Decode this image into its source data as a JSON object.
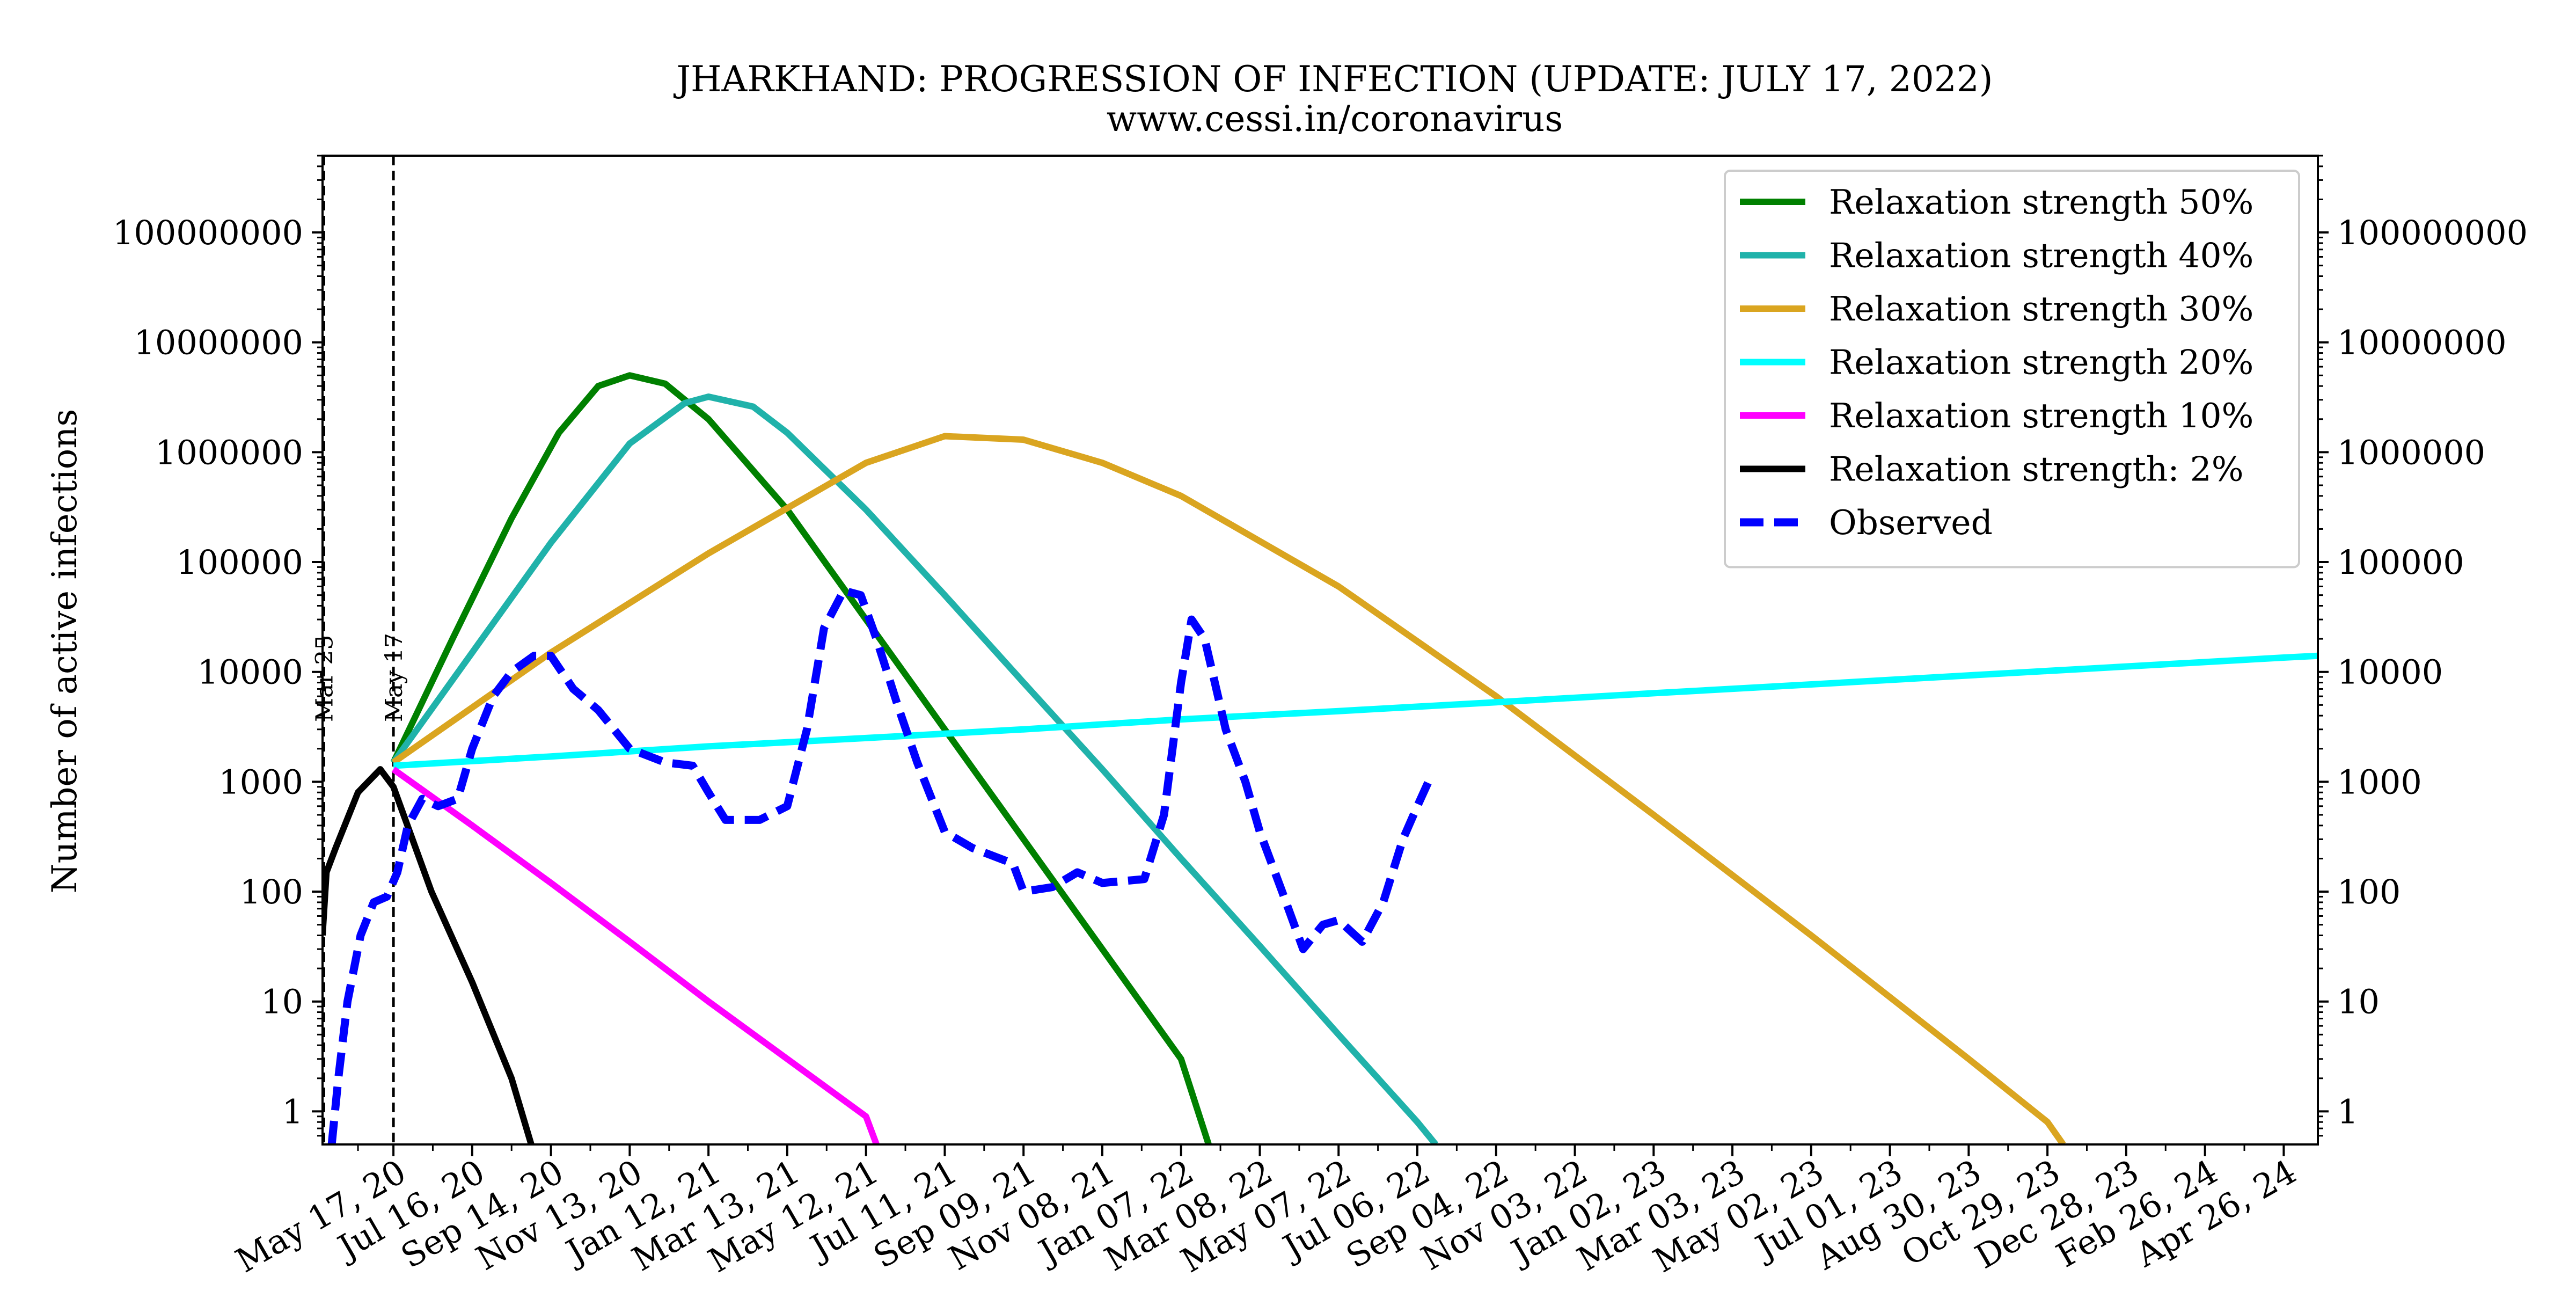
{
  "chart_data": {
    "type": "line",
    "title": "JHARKHAND: PROGRESSION OF INFECTION (UPDATE: JULY 17, 2022)",
    "subtitle": "www.cessi.in/coronavirus",
    "xlabel": "",
    "ylabel": "Number of active infections",
    "y_scale": "log",
    "ylim": [
      0.5,
      500000000
    ],
    "xlim": [
      "2020-03-24",
      "2024-05-22"
    ],
    "y_ticks": [
      {
        "value": 1,
        "label": "1"
      },
      {
        "value": 10,
        "label": "10"
      },
      {
        "value": 100,
        "label": "100"
      },
      {
        "value": 1000,
        "label": "1000"
      },
      {
        "value": 10000,
        "label": "10000"
      },
      {
        "value": 100000,
        "label": "100000"
      },
      {
        "value": 1000000,
        "label": "1000000"
      },
      {
        "value": 10000000,
        "label": "10000000"
      },
      {
        "value": 100000000,
        "label": "100000000"
      }
    ],
    "x_ticks": [
      {
        "date": "2020-05-17",
        "label": "May 17, 20"
      },
      {
        "date": "2020-07-16",
        "label": "Jul 16, 20"
      },
      {
        "date": "2020-09-14",
        "label": "Sep 14, 20"
      },
      {
        "date": "2020-11-13",
        "label": "Nov 13, 20"
      },
      {
        "date": "2021-01-12",
        "label": "Jan 12, 21"
      },
      {
        "date": "2021-03-13",
        "label": "Mar 13, 21"
      },
      {
        "date": "2021-05-12",
        "label": "May 12, 21"
      },
      {
        "date": "2021-07-11",
        "label": "Jul 11, 21"
      },
      {
        "date": "2021-09-09",
        "label": "Sep 09, 21"
      },
      {
        "date": "2021-11-08",
        "label": "Nov 08, 21"
      },
      {
        "date": "2022-01-07",
        "label": "Jan 07, 22"
      },
      {
        "date": "2022-03-08",
        "label": "Mar 08, 22"
      },
      {
        "date": "2022-05-07",
        "label": "May 07, 22"
      },
      {
        "date": "2022-07-06",
        "label": "Jul 06, 22"
      },
      {
        "date": "2022-09-04",
        "label": "Sep 04, 22"
      },
      {
        "date": "2022-11-03",
        "label": "Nov 03, 22"
      },
      {
        "date": "2023-01-02",
        "label": "Jan 02, 23"
      },
      {
        "date": "2023-03-03",
        "label": "Mar 03, 23"
      },
      {
        "date": "2023-05-02",
        "label": "May 02, 23"
      },
      {
        "date": "2023-07-01",
        "label": "Jul 01, 23"
      },
      {
        "date": "2023-08-30",
        "label": "Aug 30, 23"
      },
      {
        "date": "2023-10-29",
        "label": "Oct 29, 23"
      },
      {
        "date": "2023-12-28",
        "label": "Dec 28, 23"
      },
      {
        "date": "2024-02-26",
        "label": "Feb 26, 24"
      },
      {
        "date": "2024-04-26",
        "label": "Apr 26, 24"
      }
    ],
    "vertical_lines": [
      {
        "date": "2020-03-25",
        "label": "Mar 25",
        "color": "#000000"
      },
      {
        "date": "2020-05-17",
        "label": "May 17",
        "color": "#000000"
      }
    ],
    "legend_position": "upper right",
    "grid": false,
    "series": [
      {
        "name": "Relaxation strength 50%",
        "color": "#008000",
        "style": "solid",
        "points": [
          {
            "x": "2020-05-17",
            "y": 1500
          },
          {
            "x": "2020-07-01",
            "y": 20000
          },
          {
            "x": "2020-08-15",
            "y": 250000
          },
          {
            "x": "2020-09-20",
            "y": 1500000
          },
          {
            "x": "2020-10-20",
            "y": 4000000
          },
          {
            "x": "2020-11-13",
            "y": 5000000
          },
          {
            "x": "2020-12-10",
            "y": 4200000
          },
          {
            "x": "2021-01-12",
            "y": 2000000
          },
          {
            "x": "2021-03-13",
            "y": 300000
          },
          {
            "x": "2021-05-12",
            "y": 30000
          },
          {
            "x": "2021-07-11",
            "y": 3000
          },
          {
            "x": "2021-09-09",
            "y": 300
          },
          {
            "x": "2021-11-08",
            "y": 30
          },
          {
            "x": "2022-01-07",
            "y": 3
          },
          {
            "x": "2022-01-28",
            "y": 0.5
          }
        ]
      },
      {
        "name": "Relaxation strength 40%",
        "color": "#20b2aa",
        "style": "solid",
        "points": [
          {
            "x": "2020-05-17",
            "y": 1500
          },
          {
            "x": "2020-07-16",
            "y": 15000
          },
          {
            "x": "2020-09-14",
            "y": 150000
          },
          {
            "x": "2020-11-13",
            "y": 1200000
          },
          {
            "x": "2020-12-25",
            "y": 2800000
          },
          {
            "x": "2021-01-12",
            "y": 3200000
          },
          {
            "x": "2021-02-15",
            "y": 2600000
          },
          {
            "x": "2021-03-13",
            "y": 1500000
          },
          {
            "x": "2021-05-12",
            "y": 300000
          },
          {
            "x": "2021-07-11",
            "y": 50000
          },
          {
            "x": "2021-09-09",
            "y": 8000
          },
          {
            "x": "2021-11-08",
            "y": 1300
          },
          {
            "x": "2022-01-07",
            "y": 200
          },
          {
            "x": "2022-03-08",
            "y": 32
          },
          {
            "x": "2022-05-07",
            "y": 5
          },
          {
            "x": "2022-07-06",
            "y": 0.8
          },
          {
            "x": "2022-07-20",
            "y": 0.5
          }
        ]
      },
      {
        "name": "Relaxation strength 30%",
        "color": "#daa520",
        "style": "solid",
        "points": [
          {
            "x": "2020-05-17",
            "y": 1500
          },
          {
            "x": "2020-09-14",
            "y": 15000
          },
          {
            "x": "2021-01-12",
            "y": 120000
          },
          {
            "x": "2021-05-12",
            "y": 800000
          },
          {
            "x": "2021-07-11",
            "y": 1400000
          },
          {
            "x": "2021-09-09",
            "y": 1300000
          },
          {
            "x": "2021-11-08",
            "y": 800000
          },
          {
            "x": "2022-01-07",
            "y": 400000
          },
          {
            "x": "2022-05-07",
            "y": 60000
          },
          {
            "x": "2022-09-04",
            "y": 6000
          },
          {
            "x": "2023-01-02",
            "y": 500
          },
          {
            "x": "2023-05-02",
            "y": 40
          },
          {
            "x": "2023-08-30",
            "y": 3
          },
          {
            "x": "2023-10-29",
            "y": 0.8
          },
          {
            "x": "2023-11-10",
            "y": 0.5
          }
        ]
      },
      {
        "name": "Relaxation strength 20%",
        "color": "#00ffff",
        "style": "solid",
        "points": [
          {
            "x": "2020-05-17",
            "y": 1400
          },
          {
            "x": "2020-09-14",
            "y": 1700
          },
          {
            "x": "2021-01-12",
            "y": 2100
          },
          {
            "x": "2021-05-12",
            "y": 2500
          },
          {
            "x": "2021-09-09",
            "y": 3000
          },
          {
            "x": "2022-01-07",
            "y": 3700
          },
          {
            "x": "2022-05-07",
            "y": 4400
          },
          {
            "x": "2022-09-04",
            "y": 5300
          },
          {
            "x": "2023-01-02",
            "y": 6400
          },
          {
            "x": "2023-05-02",
            "y": 7700
          },
          {
            "x": "2023-08-30",
            "y": 9300
          },
          {
            "x": "2023-12-28",
            "y": 11200
          },
          {
            "x": "2024-04-26",
            "y": 13500
          },
          {
            "x": "2024-05-22",
            "y": 14000
          }
        ]
      },
      {
        "name": "Relaxation strength 10%",
        "color": "#ff00ff",
        "style": "solid",
        "points": [
          {
            "x": "2020-05-17",
            "y": 1300
          },
          {
            "x": "2020-07-16",
            "y": 400
          },
          {
            "x": "2020-09-14",
            "y": 120
          },
          {
            "x": "2020-11-13",
            "y": 35
          },
          {
            "x": "2021-01-12",
            "y": 10
          },
          {
            "x": "2021-03-13",
            "y": 3
          },
          {
            "x": "2021-05-12",
            "y": 0.9
          },
          {
            "x": "2021-05-20",
            "y": 0.5
          }
        ]
      },
      {
        "name": "Relaxation strength: 2%",
        "color": "#000000",
        "style": "solid",
        "points": [
          {
            "x": "2020-03-24",
            "y": 40
          },
          {
            "x": "2020-03-27",
            "y": 150
          },
          {
            "x": "2020-04-03",
            "y": 250
          },
          {
            "x": "2020-04-20",
            "y": 800
          },
          {
            "x": "2020-05-07",
            "y": 1300
          },
          {
            "x": "2020-05-17",
            "y": 900
          },
          {
            "x": "2020-06-15",
            "y": 100
          },
          {
            "x": "2020-07-16",
            "y": 15
          },
          {
            "x": "2020-08-15",
            "y": 2
          },
          {
            "x": "2020-08-30",
            "y": 0.5
          }
        ]
      },
      {
        "name": "Observed",
        "color": "#0000ff",
        "style": "dashed",
        "points": [
          {
            "x": "2020-03-31",
            "y": 0.5
          },
          {
            "x": "2020-04-05",
            "y": 2
          },
          {
            "x": "2020-04-12",
            "y": 10
          },
          {
            "x": "2020-04-22",
            "y": 40
          },
          {
            "x": "2020-05-02",
            "y": 80
          },
          {
            "x": "2020-05-12",
            "y": 90
          },
          {
            "x": "2020-05-20",
            "y": 150
          },
          {
            "x": "2020-05-28",
            "y": 400
          },
          {
            "x": "2020-06-08",
            "y": 700
          },
          {
            "x": "2020-06-20",
            "y": 600
          },
          {
            "x": "2020-07-05",
            "y": 700
          },
          {
            "x": "2020-07-16",
            "y": 2000
          },
          {
            "x": "2020-08-01",
            "y": 6000
          },
          {
            "x": "2020-08-15",
            "y": 10000
          },
          {
            "x": "2020-09-01",
            "y": 14000
          },
          {
            "x": "2020-09-14",
            "y": 14000
          },
          {
            "x": "2020-10-01",
            "y": 7000
          },
          {
            "x": "2020-10-20",
            "y": 4500
          },
          {
            "x": "2020-11-13",
            "y": 2000
          },
          {
            "x": "2020-12-10",
            "y": 1500
          },
          {
            "x": "2020-12-31",
            "y": 1400
          },
          {
            "x": "2021-01-12",
            "y": 800
          },
          {
            "x": "2021-01-25",
            "y": 450
          },
          {
            "x": "2021-02-20",
            "y": 450
          },
          {
            "x": "2021-03-13",
            "y": 600
          },
          {
            "x": "2021-03-28",
            "y": 3000
          },
          {
            "x": "2021-04-10",
            "y": 25000
          },
          {
            "x": "2021-04-25",
            "y": 55000
          },
          {
            "x": "2021-05-08",
            "y": 50000
          },
          {
            "x": "2021-05-20",
            "y": 20000
          },
          {
            "x": "2021-06-05",
            "y": 5000
          },
          {
            "x": "2021-06-20",
            "y": 1500
          },
          {
            "x": "2021-07-11",
            "y": 350
          },
          {
            "x": "2021-08-01",
            "y": 250
          },
          {
            "x": "2021-09-01",
            "y": 180
          },
          {
            "x": "2021-09-09",
            "y": 100
          },
          {
            "x": "2021-10-01",
            "y": 110
          },
          {
            "x": "2021-10-20",
            "y": 150
          },
          {
            "x": "2021-11-08",
            "y": 120
          },
          {
            "x": "2021-12-10",
            "y": 130
          },
          {
            "x": "2021-12-25",
            "y": 500
          },
          {
            "x": "2022-01-07",
            "y": 8000
          },
          {
            "x": "2022-01-15",
            "y": 30000
          },
          {
            "x": "2022-01-25",
            "y": 20000
          },
          {
            "x": "2022-02-10",
            "y": 3000
          },
          {
            "x": "2022-02-25",
            "y": 1000
          },
          {
            "x": "2022-03-08",
            "y": 350
          },
          {
            "x": "2022-03-25",
            "y": 100
          },
          {
            "x": "2022-04-10",
            "y": 30
          },
          {
            "x": "2022-04-25",
            "y": 50
          },
          {
            "x": "2022-05-07",
            "y": 55
          },
          {
            "x": "2022-05-25",
            "y": 35
          },
          {
            "x": "2022-06-10",
            "y": 80
          },
          {
            "x": "2022-06-25",
            "y": 300
          },
          {
            "x": "2022-07-06",
            "y": 600
          },
          {
            "x": "2022-07-16",
            "y": 1100
          }
        ]
      }
    ]
  }
}
